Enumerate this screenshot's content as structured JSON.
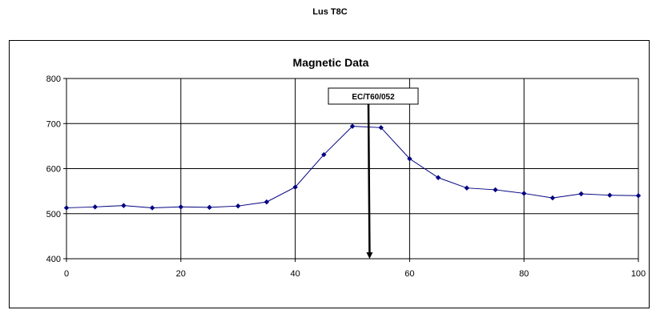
{
  "page": {
    "title": "Lus T8C"
  },
  "colors": {
    "series": "#000080",
    "grid": "#000000",
    "axis": "#000000"
  },
  "chart_data": {
    "type": "line",
    "title": "Magnetic Data",
    "xlabel": "",
    "ylabel": "",
    "xlim": [
      0,
      100
    ],
    "ylim": [
      400,
      800
    ],
    "x_ticks": [
      0,
      20,
      40,
      60,
      80,
      100
    ],
    "y_ticks": [
      400,
      500,
      600,
      700,
      800
    ],
    "grid": true,
    "series": [
      {
        "x": [
          0,
          5,
          10,
          15,
          20,
          25,
          30,
          35,
          40,
          45,
          50,
          55,
          60,
          65,
          70,
          75,
          80,
          85,
          90,
          95,
          100
        ],
        "y": [
          513,
          515,
          518,
          513,
          515,
          514,
          517,
          526,
          559,
          631,
          694,
          691,
          622,
          580,
          557,
          553,
          545,
          535,
          544,
          541,
          540
        ]
      }
    ],
    "annotation": {
      "text": "EC/T60/052",
      "x": 53,
      "y_tip": 400
    }
  }
}
